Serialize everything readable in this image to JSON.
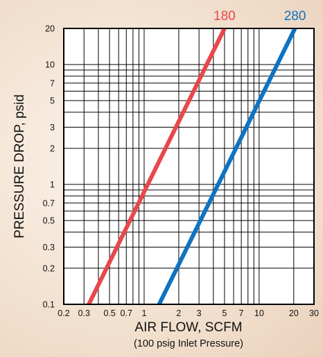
{
  "chart_data": {
    "type": "line",
    "xlabel": "AIR FLOW, SCFM",
    "xlabel_note": "(100 psig Inlet Pressure)",
    "ylabel": "PRESSURE DROP, psid",
    "xscale": "log",
    "yscale": "log",
    "xlim": [
      0.2,
      30
    ],
    "ylim": [
      0.1,
      20
    ],
    "grid": true,
    "x_ticks": [
      0.2,
      0.3,
      0.5,
      0.7,
      1,
      2,
      3,
      5,
      7,
      10,
      20,
      30
    ],
    "x_tick_labels": [
      "0.2",
      "0.3",
      "0.5",
      "0.7",
      "1",
      "2",
      "3",
      "5",
      "7",
      "10",
      "20",
      "30"
    ],
    "y_ticks": [
      0.1,
      0.2,
      0.3,
      0.5,
      0.7,
      1,
      2,
      3,
      5,
      7,
      10,
      20
    ],
    "y_tick_labels": [
      "0.1",
      "0.2",
      "0.3",
      "0.5",
      "0.7",
      "1",
      "2",
      "3",
      "5",
      "7",
      "10",
      "20"
    ],
    "x_grid": [
      0.2,
      0.3,
      0.4,
      0.5,
      0.6,
      0.7,
      0.8,
      0.9,
      1,
      2,
      3,
      4,
      5,
      6,
      7,
      8,
      9,
      10,
      20,
      30
    ],
    "y_grid": [
      0.1,
      0.2,
      0.3,
      0.4,
      0.5,
      0.6,
      0.7,
      0.8,
      0.9,
      1,
      2,
      3,
      4,
      5,
      6,
      7,
      8,
      9,
      10,
      20
    ],
    "series": [
      {
        "name": "180",
        "color": "#e8474c",
        "x": [
          0.33,
          5.0
        ],
        "y": [
          0.1,
          20
        ]
      },
      {
        "name": "280",
        "color": "#0f73c1",
        "x": [
          1.35,
          20.5
        ],
        "y": [
          0.1,
          20
        ]
      }
    ]
  }
}
